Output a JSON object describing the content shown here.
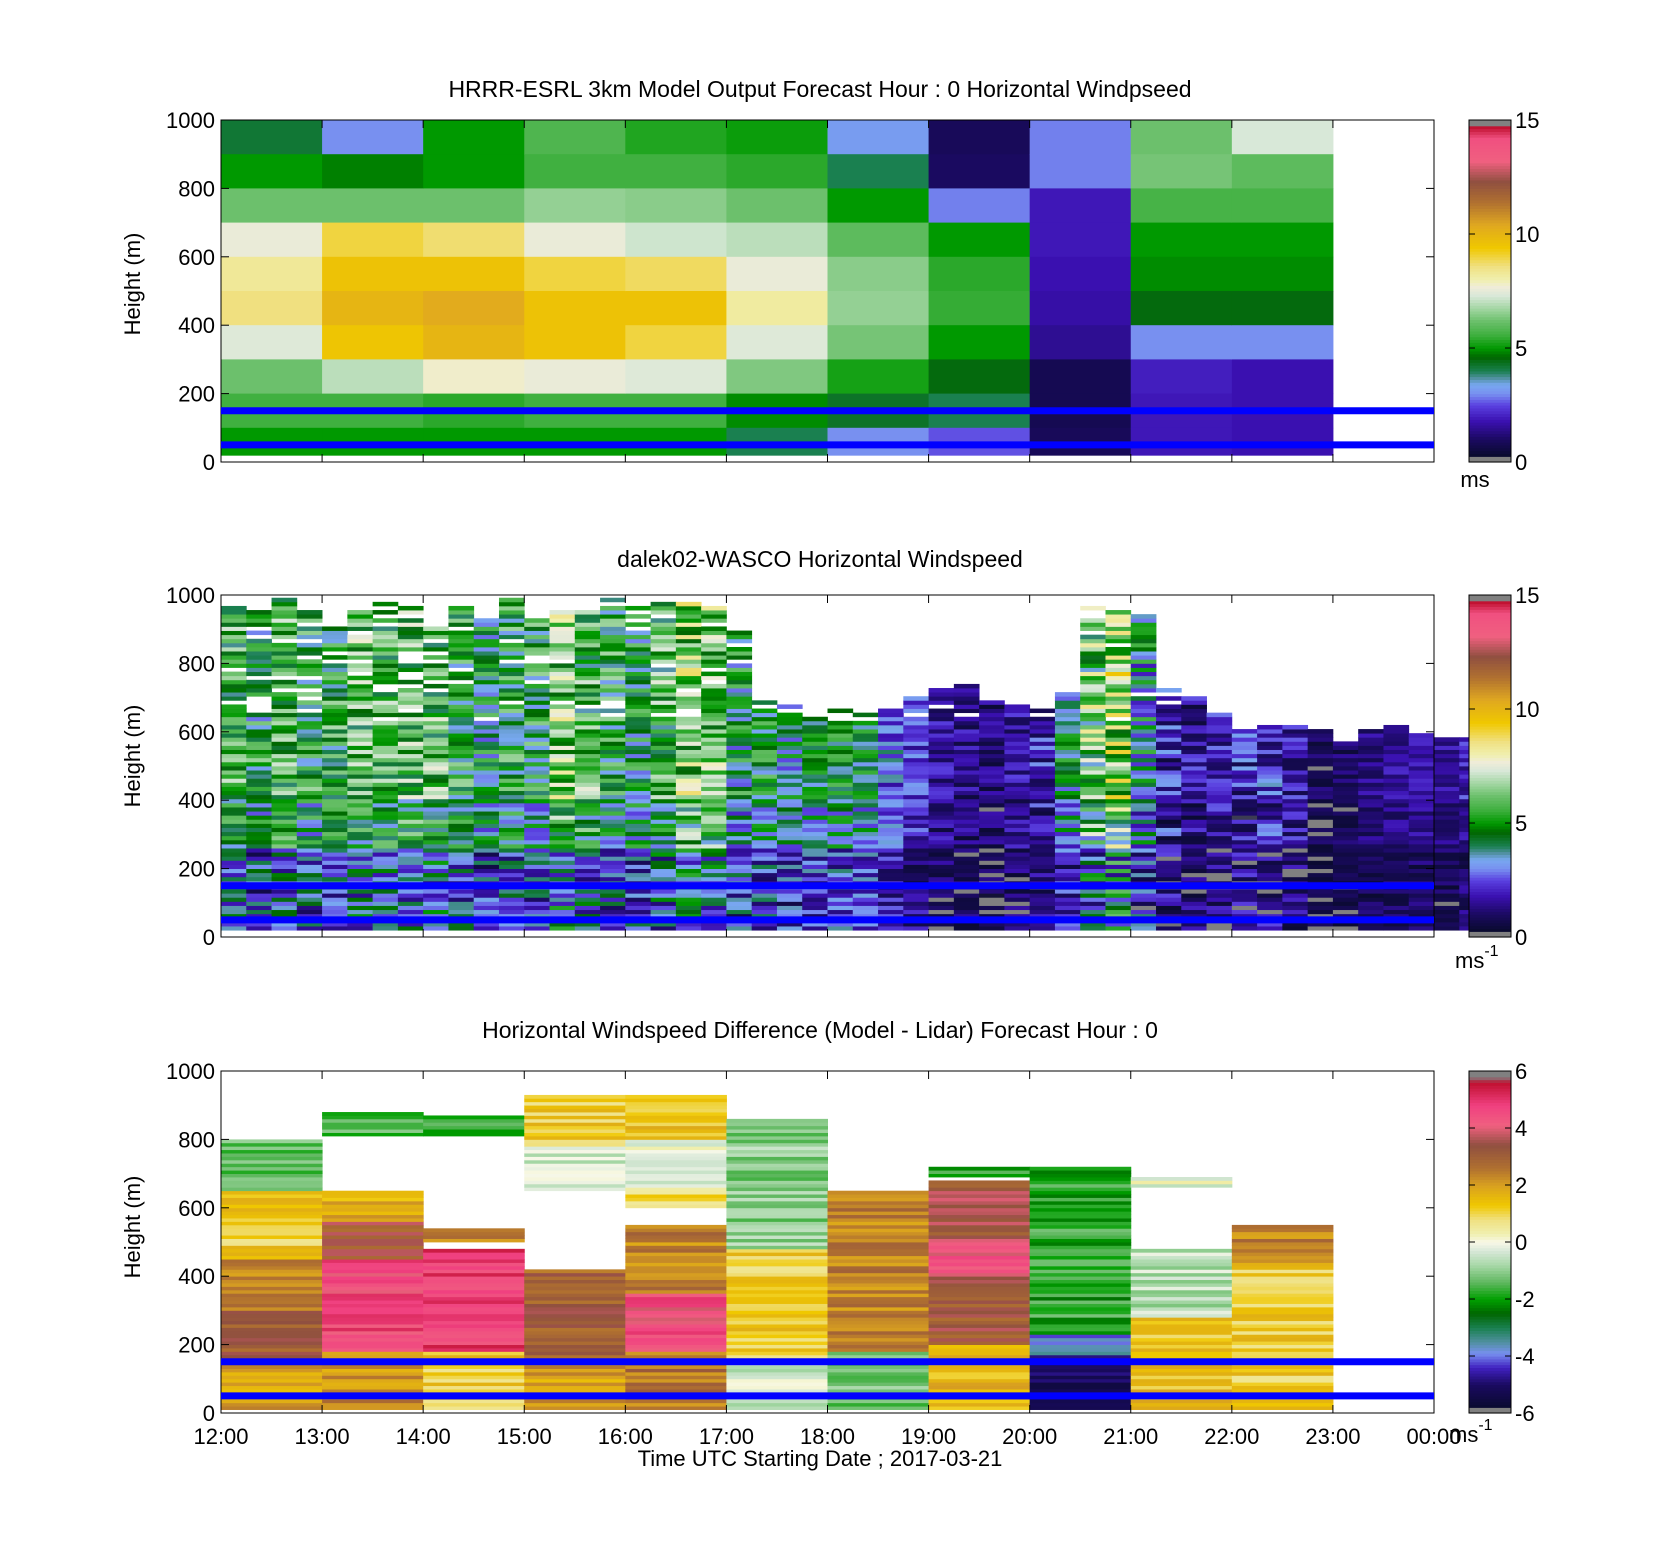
{
  "figure": {
    "xlabel": "Time UTC  Starting Date ; 2017-03-21",
    "x_tick_labels": [
      "12:00",
      "13:00",
      "14:00",
      "15:00",
      "16:00",
      "17:00",
      "18:00",
      "19:00",
      "20:00",
      "21:00",
      "22:00",
      "23:00",
      "00:00"
    ]
  },
  "colors": {
    "reference_lines": "#0000ff"
  },
  "reference_lines_m": [
    50,
    150
  ],
  "chart_data": [
    {
      "type": "heatmap",
      "title": "HRRR-ESRL 3km Model Output   Forecast Hour : 0 Horizontal Windpseed",
      "ylabel": "Height (m)",
      "unit": "ms",
      "xlim": [
        "12:00",
        "00:00"
      ],
      "ylim": [
        0,
        1000
      ],
      "y_ticks": [
        0,
        200,
        400,
        600,
        800,
        1000
      ],
      "colorbar": {
        "min": 0,
        "max": 15,
        "ticks": [
          0,
          5,
          10,
          15
        ]
      },
      "columns": [
        "12:00",
        "13:00",
        "14:00",
        "15:00",
        "16:00",
        "17:00",
        "18:00",
        "19:00",
        "20:00",
        "21:00",
        "22:00"
      ],
      "levels": [
        {
          "top": 1000,
          "bottom": 900,
          "values": [
            4.2,
            3.0,
            5.0,
            5.8,
            5.3,
            5.1,
            3.2,
            0.9,
            2.9,
            6.2,
            7.3
          ]
        },
        {
          "top": 900,
          "bottom": 800,
          "values": [
            5.0,
            4.8,
            5.0,
            5.6,
            5.6,
            5.4,
            4.0,
            1.0,
            2.9,
            6.3,
            6.0
          ]
        },
        {
          "top": 800,
          "bottom": 700,
          "values": [
            6.2,
            6.2,
            6.2,
            6.6,
            6.5,
            6.2,
            5.0,
            2.9,
            1.9,
            5.7,
            5.7
          ]
        },
        {
          "top": 700,
          "bottom": 600,
          "values": [
            7.6,
            9.0,
            8.7,
            7.6,
            7.2,
            7.0,
            6.0,
            5.0,
            1.9,
            5.0,
            5.0
          ]
        },
        {
          "top": 600,
          "bottom": 500,
          "values": [
            8.3,
            9.6,
            9.6,
            9.0,
            8.8,
            7.6,
            6.5,
            5.4,
            1.8,
            4.9,
            4.9
          ]
        },
        {
          "top": 500,
          "bottom": 400,
          "values": [
            8.6,
            10.0,
            10.3,
            9.6,
            9.6,
            8.2,
            6.6,
            5.5,
            1.7,
            4.5,
            4.5
          ]
        },
        {
          "top": 400,
          "bottom": 300,
          "values": [
            7.4,
            9.5,
            10.0,
            9.6,
            9.0,
            7.4,
            6.3,
            5.0,
            1.5,
            3.0,
            3.0
          ]
        },
        {
          "top": 300,
          "bottom": 200,
          "values": [
            6.2,
            7.0,
            7.8,
            7.6,
            7.4,
            6.4,
            5.2,
            4.5,
            0.8,
            2.0,
            1.8
          ]
        },
        {
          "top": 200,
          "bottom": 100,
          "values": [
            5.6,
            5.6,
            5.4,
            5.6,
            5.6,
            4.9,
            4.3,
            4.0,
            0.8,
            1.9,
            1.8
          ]
        },
        {
          "top": 100,
          "bottom": 20,
          "values": [
            5.0,
            5.0,
            5.0,
            5.0,
            5.0,
            4.0,
            3.0,
            2.6,
            0.9,
            1.9,
            1.8
          ]
        }
      ]
    },
    {
      "type": "heatmap",
      "title": "dalek02-WASCO  Horizontal Windspeed",
      "ylabel": "Height (m)",
      "unit": "ms",
      "unit_exponent": "-1",
      "xlim": [
        "12:00",
        "00:00"
      ],
      "ylim": [
        0,
        1000
      ],
      "y_ticks": [
        0,
        200,
        400,
        600,
        800,
        1000
      ],
      "colorbar": {
        "min": 0,
        "max": 15,
        "ticks": [
          0,
          5,
          10,
          15
        ]
      },
      "time_step_hours": 0.25,
      "start_time": "12:00",
      "profiles": [
        {
          "top": 960,
          "base": 5.5,
          "noise": 1.8
        },
        {
          "top": 950,
          "base": 4.8,
          "noise": 2.0
        },
        {
          "top": 990,
          "base": 5.6,
          "noise": 1.8
        },
        {
          "top": 950,
          "base": 5.0,
          "noise": 1.8
        },
        {
          "top": 900,
          "base": 5.2,
          "noise": 1.8
        },
        {
          "top": 950,
          "base": 5.8,
          "noise": 2.0
        },
        {
          "top": 980,
          "base": 5.6,
          "noise": 1.8
        },
        {
          "top": 960,
          "base": 6.0,
          "noise": 2.0
        },
        {
          "top": 900,
          "base": 5.8,
          "noise": 2.0
        },
        {
          "top": 960,
          "base": 5.0,
          "noise": 1.8
        },
        {
          "top": 930,
          "base": 4.4,
          "noise": 1.8
        },
        {
          "top": 990,
          "base": 5.0,
          "noise": 1.8
        },
        {
          "top": 930,
          "base": 4.9,
          "noise": 1.8
        },
        {
          "top": 960,
          "base": 6.4,
          "noise": 2.0
        },
        {
          "top": 950,
          "base": 5.6,
          "noise": 2.0
        },
        {
          "top": 990,
          "base": 5.0,
          "noise": 1.8
        },
        {
          "top": 960,
          "base": 4.6,
          "noise": 1.8
        },
        {
          "top": 980,
          "base": 5.6,
          "noise": 2.0
        },
        {
          "top": 970,
          "base": 6.6,
          "noise": 2.2
        },
        {
          "top": 980,
          "base": 6.4,
          "noise": 2.0
        },
        {
          "top": 900,
          "base": 4.4,
          "noise": 1.8
        },
        {
          "top": 690,
          "base": 4.6,
          "noise": 1.6
        },
        {
          "top": 680,
          "base": 4.0,
          "noise": 1.6
        },
        {
          "top": 650,
          "base": 4.3,
          "noise": 1.4
        },
        {
          "top": 660,
          "base": 4.6,
          "noise": 1.4
        },
        {
          "top": 650,
          "base": 4.2,
          "noise": 1.4
        },
        {
          "top": 660,
          "base": 2.8,
          "noise": 1.2
        },
        {
          "top": 700,
          "base": 2.4,
          "noise": 1.0
        },
        {
          "top": 720,
          "base": 1.6,
          "noise": 0.9
        },
        {
          "top": 730,
          "base": 1.4,
          "noise": 0.9
        },
        {
          "top": 710,
          "base": 1.2,
          "noise": 0.8
        },
        {
          "top": 680,
          "base": 1.6,
          "noise": 0.9
        },
        {
          "top": 660,
          "base": 2.0,
          "noise": 1.2
        },
        {
          "top": 710,
          "base": 4.0,
          "noise": 1.6
        },
        {
          "top": 960,
          "base": 6.0,
          "noise": 2.6
        },
        {
          "top": 950,
          "base": 7.0,
          "noise": 2.6
        },
        {
          "top": 940,
          "base": 3.8,
          "noise": 2.0
        },
        {
          "top": 720,
          "base": 2.0,
          "noise": 1.6
        },
        {
          "top": 700,
          "base": 1.6,
          "noise": 1.2
        },
        {
          "top": 650,
          "base": 1.8,
          "noise": 1.2
        },
        {
          "top": 600,
          "base": 2.0,
          "noise": 1.4
        },
        {
          "top": 610,
          "base": 2.2,
          "noise": 1.4
        },
        {
          "top": 610,
          "base": 1.8,
          "noise": 1.2
        },
        {
          "top": 600,
          "base": 0.8,
          "noise": 0.6
        },
        {
          "top": 570,
          "base": 1.0,
          "noise": 0.6
        },
        {
          "top": 600,
          "base": 1.4,
          "noise": 0.6
        },
        {
          "top": 610,
          "base": 1.6,
          "noise": 0.6
        },
        {
          "top": 590,
          "base": 1.8,
          "noise": 0.6
        },
        {
          "top": 580,
          "base": 1.6,
          "noise": 0.6
        },
        {
          "top": 580,
          "base": 2.0,
          "noise": 0.8
        },
        {
          "top": 580,
          "base": 2.2,
          "noise": 0.8
        }
      ]
    },
    {
      "type": "heatmap",
      "title": "Horizontal Windspeed Difference (Model - Lidar) Forecast Hour : 0",
      "ylabel": "Height (m)",
      "unit": "ms",
      "unit_exponent": "-1",
      "xlim": [
        "12:00",
        "00:00"
      ],
      "ylim": [
        0,
        1000
      ],
      "y_ticks": [
        0,
        200,
        400,
        600,
        800,
        1000
      ],
      "colorbar": {
        "min": -6,
        "max": 6,
        "ticks": [
          -6,
          -4,
          -2,
          0,
          2,
          4,
          6
        ]
      },
      "columns": [
        {
          "time": "12:00",
          "segments": [
            {
              "bottom": 10,
              "top": 150,
              "value": 2.0
            },
            {
              "bottom": 150,
              "top": 300,
              "value": 3.2
            },
            {
              "bottom": 300,
              "top": 450,
              "value": 2.4
            },
            {
              "bottom": 450,
              "top": 650,
              "value": 1.2
            },
            {
              "bottom": 650,
              "top": 800,
              "value": -1.2
            }
          ]
        },
        {
          "time": "13:00",
          "segments": [
            {
              "bottom": 10,
              "top": 180,
              "value": 2.2
            },
            {
              "bottom": 180,
              "top": 450,
              "value": 4.6
            },
            {
              "bottom": 450,
              "top": 560,
              "value": 3.2
            },
            {
              "bottom": 560,
              "top": 650,
              "value": 1.8
            },
            {
              "bottom": 810,
              "top": 880,
              "value": -1.6
            }
          ]
        },
        {
          "time": "14:00",
          "segments": [
            {
              "bottom": 10,
              "top": 180,
              "value": 1.2
            },
            {
              "bottom": 180,
              "top": 480,
              "value": 4.8
            },
            {
              "bottom": 500,
              "top": 540,
              "value": 2.2
            },
            {
              "bottom": 810,
              "top": 870,
              "value": -1.6
            }
          ]
        },
        {
          "time": "15:00",
          "segments": [
            {
              "bottom": 10,
              "top": 160,
              "value": 2.0
            },
            {
              "bottom": 160,
              "top": 420,
              "value": 3.0
            },
            {
              "bottom": 650,
              "top": 780,
              "value": -0.4
            },
            {
              "bottom": 780,
              "top": 930,
              "value": 1.2
            }
          ]
        },
        {
          "time": "16:00",
          "segments": [
            {
              "bottom": 10,
              "top": 180,
              "value": 2.6
            },
            {
              "bottom": 180,
              "top": 350,
              "value": 4.4
            },
            {
              "bottom": 350,
              "top": 550,
              "value": 2.4
            },
            {
              "bottom": 600,
              "top": 660,
              "value": 1.0
            },
            {
              "bottom": 660,
              "top": 800,
              "value": -0.2
            },
            {
              "bottom": 800,
              "top": 930,
              "value": 1.4
            }
          ]
        },
        {
          "time": "17:00",
          "segments": [
            {
              "bottom": 10,
              "top": 160,
              "value": -0.3
            },
            {
              "bottom": 160,
              "top": 480,
              "value": 1.2
            },
            {
              "bottom": 480,
              "top": 860,
              "value": -1.0
            }
          ]
        },
        {
          "time": "18:00",
          "segments": [
            {
              "bottom": 10,
              "top": 180,
              "value": -1.2
            },
            {
              "bottom": 180,
              "top": 650,
              "value": 2.4
            }
          ]
        },
        {
          "time": "19:00",
          "segments": [
            {
              "bottom": 10,
              "top": 200,
              "value": 1.6
            },
            {
              "bottom": 200,
              "top": 400,
              "value": 3.2
            },
            {
              "bottom": 400,
              "top": 500,
              "value": 4.2
            },
            {
              "bottom": 500,
              "top": 680,
              "value": 3.4
            },
            {
              "bottom": 690,
              "top": 720,
              "value": -1.6
            }
          ]
        },
        {
          "time": "20:00",
          "segments": [
            {
              "bottom": 10,
              "top": 170,
              "value": -5.2
            },
            {
              "bottom": 170,
              "top": 230,
              "value": -3.8
            },
            {
              "bottom": 230,
              "top": 720,
              "value": -1.8
            }
          ]
        },
        {
          "time": "21:00",
          "segments": [
            {
              "bottom": 10,
              "top": 280,
              "value": 1.4
            },
            {
              "bottom": 280,
              "top": 480,
              "value": -0.6
            },
            {
              "bottom": 660,
              "top": 690,
              "value": 0.0
            }
          ]
        },
        {
          "time": "22:00",
          "segments": [
            {
              "bottom": 10,
              "top": 440,
              "value": 1.2
            },
            {
              "bottom": 440,
              "top": 550,
              "value": 2.4
            }
          ]
        }
      ]
    }
  ]
}
